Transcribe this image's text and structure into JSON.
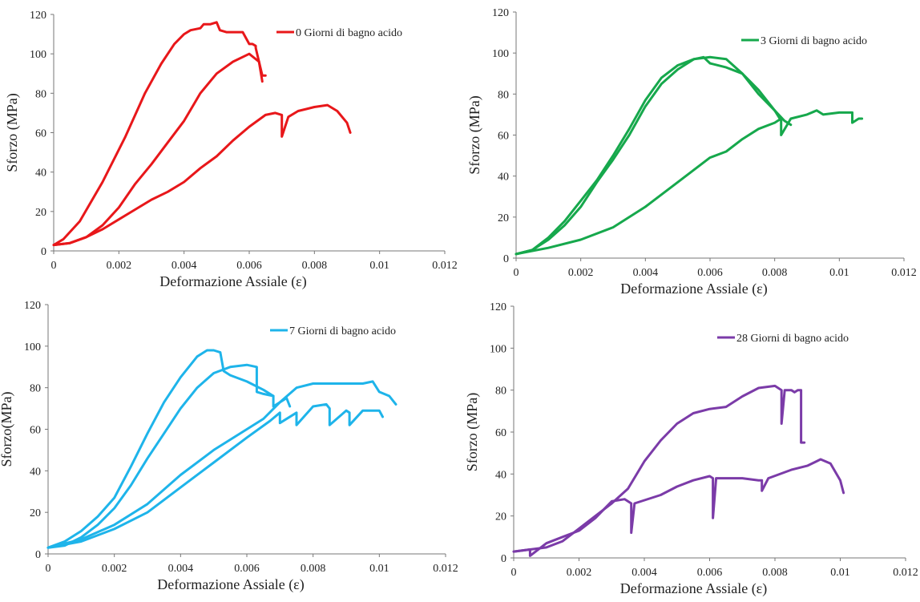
{
  "chart_data": [
    {
      "type": "line",
      "xlabel": "Deformazione Assiale (ε)",
      "ylabel": "Sforzo (MPa)",
      "xlim": [
        0,
        0.012
      ],
      "ylim": [
        0,
        120
      ],
      "xticks": [
        "0",
        "0.002",
        "0.004",
        "0.006",
        "0.008",
        "0.01",
        "0.012"
      ],
      "yticks": [
        "0",
        "20",
        "40",
        "60",
        "80",
        "100",
        "120"
      ],
      "grid": false,
      "legend_position": "top-right",
      "color": "#e8171a",
      "series": [
        {
          "name": "0 Giorni di bagno acido",
          "x": [
            0,
            0.0003,
            0.0008,
            0.0015,
            0.0022,
            0.0028,
            0.0033,
            0.0037,
            0.004,
            0.0042,
            0.0045,
            0.0046,
            0.0048,
            0.005,
            0.0051,
            0.0053,
            0.0055,
            0.0058,
            0.006,
            0.0061,
            0.0062,
            0.0062,
            0.0064,
            0.0065
          ],
          "y": [
            3,
            6,
            15,
            35,
            58,
            80,
            95,
            105,
            110,
            112,
            113,
            115,
            115,
            116,
            112,
            111,
            111,
            111,
            105,
            105,
            104,
            103,
            89,
            89
          ]
        },
        {
          "name": "",
          "x": [
            0,
            0.0005,
            0.001,
            0.0015,
            0.002,
            0.0025,
            0.003,
            0.0035,
            0.004,
            0.0045,
            0.005,
            0.0055,
            0.006,
            0.0063,
            0.0064
          ],
          "y": [
            3,
            4,
            7,
            13,
            22,
            34,
            44,
            55,
            66,
            80,
            90,
            96,
            100,
            96,
            86
          ]
        },
        {
          "name": "",
          "x": [
            0,
            0.0005,
            0.001,
            0.0015,
            0.002,
            0.0025,
            0.003,
            0.0035,
            0.004,
            0.0045,
            0.005,
            0.0055,
            0.006,
            0.0065,
            0.0068,
            0.007,
            0.007,
            0.0072,
            0.0075,
            0.008,
            0.0084,
            0.0087,
            0.009,
            0.0091
          ],
          "y": [
            3,
            4,
            7,
            11,
            16,
            21,
            26,
            30,
            35,
            42,
            48,
            56,
            63,
            69,
            70,
            69,
            58,
            68,
            71,
            73,
            74,
            71,
            65,
            60
          ]
        }
      ]
    },
    {
      "type": "line",
      "xlabel": "Deformazione Assiale (ε)",
      "ylabel": "Sforzo (MPa)",
      "xlim": [
        0,
        0.012
      ],
      "ylim": [
        0,
        120
      ],
      "xticks": [
        "0",
        "0.002",
        "0.004",
        "0.006",
        "0.008",
        "0.01",
        "0.012"
      ],
      "yticks": [
        "0",
        "20",
        "40",
        "60",
        "80",
        "100",
        "120"
      ],
      "grid": false,
      "legend_position": "top-right",
      "color": "#16a84c",
      "series": [
        {
          "name": "3 Giorni di bagno acido",
          "x": [
            0,
            0.0005,
            0.001,
            0.0015,
            0.002,
            0.0025,
            0.003,
            0.0035,
            0.004,
            0.0045,
            0.005,
            0.0055,
            0.0058,
            0.006,
            0.0065,
            0.007,
            0.0075,
            0.008,
            0.0083,
            0.0085
          ],
          "y": [
            2,
            4,
            10,
            18,
            28,
            38,
            50,
            63,
            77,
            88,
            94,
            97,
            98,
            95,
            93,
            90,
            82,
            72,
            67,
            65
          ]
        },
        {
          "name": "",
          "x": [
            0,
            0.0005,
            0.001,
            0.0015,
            0.002,
            0.0025,
            0.003,
            0.0035,
            0.004,
            0.0045,
            0.005,
            0.0055,
            0.006,
            0.0065,
            0.007,
            0.0075,
            0.008,
            0.0082
          ],
          "y": [
            2,
            4,
            9,
            16,
            25,
            37,
            48,
            60,
            74,
            85,
            92,
            97,
            98,
            97,
            90,
            80,
            72,
            67
          ]
        },
        {
          "name": "",
          "x": [
            0,
            0.001,
            0.002,
            0.003,
            0.004,
            0.005,
            0.006,
            0.0065,
            0.007,
            0.0075,
            0.008,
            0.0082,
            0.0082,
            0.0085,
            0.009,
            0.0093,
            0.0095,
            0.01,
            0.0104,
            0.0104,
            0.0106,
            0.0107
          ],
          "y": [
            2,
            5,
            9,
            15,
            25,
            37,
            49,
            52,
            58,
            63,
            66,
            68,
            60,
            68,
            70,
            72,
            70,
            71,
            71,
            66,
            68,
            68
          ]
        }
      ]
    },
    {
      "type": "line",
      "xlabel": "Deformazione Assiale (ε)",
      "ylabel": "Sforzo(MPa)",
      "xlim": [
        0,
        0.012
      ],
      "ylim": [
        0,
        120
      ],
      "xticks": [
        "0",
        "0.002",
        "0.004",
        "0.006",
        "0.008",
        "0.01",
        "0.012"
      ],
      "yticks": [
        "0",
        "20",
        "40",
        "60",
        "80",
        "100",
        "120"
      ],
      "grid": false,
      "legend_position": "top-right",
      "color": "#1eb4ea",
      "series": [
        {
          "name": "7 Giorni di bagno acido",
          "x": [
            0,
            0.0005,
            0.001,
            0.0015,
            0.002,
            0.0025,
            0.003,
            0.0035,
            0.004,
            0.0045,
            0.0048,
            0.005,
            0.0052,
            0.0053,
            0.0055,
            0.006,
            0.0065,
            0.0068
          ],
          "y": [
            3,
            6,
            11,
            18,
            27,
            42,
            58,
            73,
            85,
            95,
            98,
            98,
            97,
            88,
            86,
            83,
            79,
            76
          ]
        },
        {
          "name": "",
          "x": [
            0,
            0.0005,
            0.001,
            0.0015,
            0.002,
            0.0025,
            0.003,
            0.0035,
            0.004,
            0.0045,
            0.005,
            0.0055,
            0.006,
            0.0063,
            0.0063,
            0.0065,
            0.0068,
            0.0068,
            0.0072,
            0.0073
          ],
          "y": [
            3,
            4,
            8,
            14,
            22,
            33,
            46,
            58,
            70,
            80,
            87,
            90,
            91,
            90,
            78,
            77,
            76,
            71,
            75,
            71
          ]
        },
        {
          "name": "",
          "x": [
            0,
            0.001,
            0.002,
            0.003,
            0.004,
            0.005,
            0.006,
            0.0065,
            0.007,
            0.0075,
            0.008,
            0.0085,
            0.009,
            0.0095,
            0.0098,
            0.01,
            0.0103,
            0.0105
          ],
          "y": [
            3,
            7,
            14,
            24,
            38,
            50,
            60,
            65,
            73,
            80,
            82,
            82,
            82,
            82,
            83,
            78,
            76,
            72
          ]
        },
        {
          "name": "",
          "x": [
            0,
            0.001,
            0.002,
            0.003,
            0.004,
            0.005,
            0.006,
            0.0067,
            0.007,
            0.007,
            0.0075,
            0.0075,
            0.008,
            0.0084,
            0.0085,
            0.0085,
            0.009,
            0.0091,
            0.0091,
            0.0095,
            0.01,
            0.0101
          ],
          "y": [
            3,
            6,
            12,
            20,
            32,
            44,
            56,
            64,
            68,
            63,
            68,
            62,
            71,
            72,
            70,
            62,
            69,
            68,
            62,
            69,
            69,
            66
          ]
        }
      ]
    },
    {
      "type": "line",
      "xlabel": "Deformazione Assiale (ε)",
      "ylabel": "Sforzo (MPa)",
      "xlim": [
        0,
        0.012
      ],
      "ylim": [
        0,
        120
      ],
      "xticks": [
        "0",
        "0.002",
        "0.004",
        "0.006",
        "0.008",
        "0.01",
        "0.012"
      ],
      "yticks": [
        "0",
        "20",
        "40",
        "60",
        "80",
        "100",
        "120"
      ],
      "grid": false,
      "legend_position": "top-right",
      "color": "#7b3ba8",
      "series": [
        {
          "name": "28 Giorni di bagno acido",
          "x": [
            0,
            0.0005,
            0.001,
            0.0015,
            0.002,
            0.0025,
            0.003,
            0.0035,
            0.004,
            0.0045,
            0.005,
            0.0055,
            0.006,
            0.0065,
            0.007,
            0.0075,
            0.008,
            0.0082,
            0.0082,
            0.0083,
            0.0085,
            0.0086,
            0.0087,
            0.0088,
            0.0088,
            0.0089
          ],
          "y": [
            3,
            4,
            5,
            8,
            14,
            20,
            26,
            33,
            46,
            56,
            64,
            69,
            71,
            72,
            77,
            81,
            82,
            80,
            64,
            80,
            80,
            79,
            80,
            80,
            55,
            55
          ]
        },
        {
          "name": "",
          "x": [
            0,
            0.0005,
            0.0005,
            0.001,
            0.0015,
            0.002,
            0.0025,
            0.003,
            0.0034,
            0.0036,
            0.0036,
            0.0037,
            0.0045,
            0.005,
            0.0055,
            0.006,
            0.0061,
            0.0061,
            0.0062,
            0.007,
            0.0075,
            0.0076,
            0.0076,
            0.0078,
            0.0085,
            0.009,
            0.0094,
            0.0097,
            0.01,
            0.0101
          ],
          "y": [
            3,
            4,
            1,
            7,
            10,
            13,
            19,
            27,
            28,
            26,
            12,
            26,
            30,
            34,
            37,
            39,
            38,
            19,
            38,
            38,
            37,
            37,
            32,
            38,
            42,
            44,
            47,
            45,
            37,
            31
          ]
        }
      ]
    }
  ]
}
